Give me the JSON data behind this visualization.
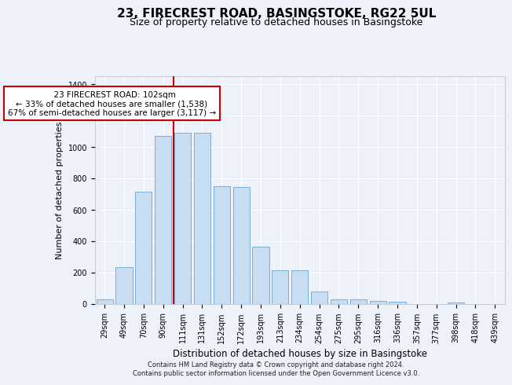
{
  "title": "23, FIRECREST ROAD, BASINGSTOKE, RG22 5UL",
  "subtitle": "Size of property relative to detached houses in Basingstoke",
  "xlabel": "Distribution of detached houses by size in Basingstoke",
  "ylabel": "Number of detached properties",
  "footer_line1": "Contains HM Land Registry data © Crown copyright and database right 2024.",
  "footer_line2": "Contains public sector information licensed under the Open Government Licence v3.0.",
  "categories": [
    "29sqm",
    "49sqm",
    "70sqm",
    "90sqm",
    "111sqm",
    "131sqm",
    "152sqm",
    "172sqm",
    "193sqm",
    "213sqm",
    "234sqm",
    "254sqm",
    "275sqm",
    "295sqm",
    "316sqm",
    "336sqm",
    "357sqm",
    "377sqm",
    "398sqm",
    "418sqm",
    "439sqm"
  ],
  "values": [
    30,
    235,
    715,
    1070,
    1090,
    1090,
    750,
    745,
    365,
    215,
    215,
    80,
    30,
    30,
    20,
    15,
    0,
    0,
    10,
    0,
    0
  ],
  "bar_color": "#c9ddf2",
  "bar_edge_color": "#7aaed6",
  "vline_color": "#cc0000",
  "vline_x": 3.52,
  "annotation_text": "  23 FIRECREST ROAD: 102sqm\n← 33% of detached houses are smaller (1,538)\n67% of semi-detached houses are larger (3,117) →",
  "annotation_box_color": "#ffffff",
  "annotation_border_color": "#cc0000",
  "ylim": [
    0,
    1450
  ],
  "yticks": [
    0,
    200,
    400,
    600,
    800,
    1000,
    1200,
    1400
  ],
  "background_color": "#edf1f9",
  "plot_background": "#edf1f9",
  "title_fontsize": 11,
  "subtitle_fontsize": 9,
  "xlabel_fontsize": 8.5,
  "ylabel_fontsize": 8,
  "tick_fontsize": 7,
  "annotation_fontsize": 7.5,
  "footer_fontsize": 6
}
